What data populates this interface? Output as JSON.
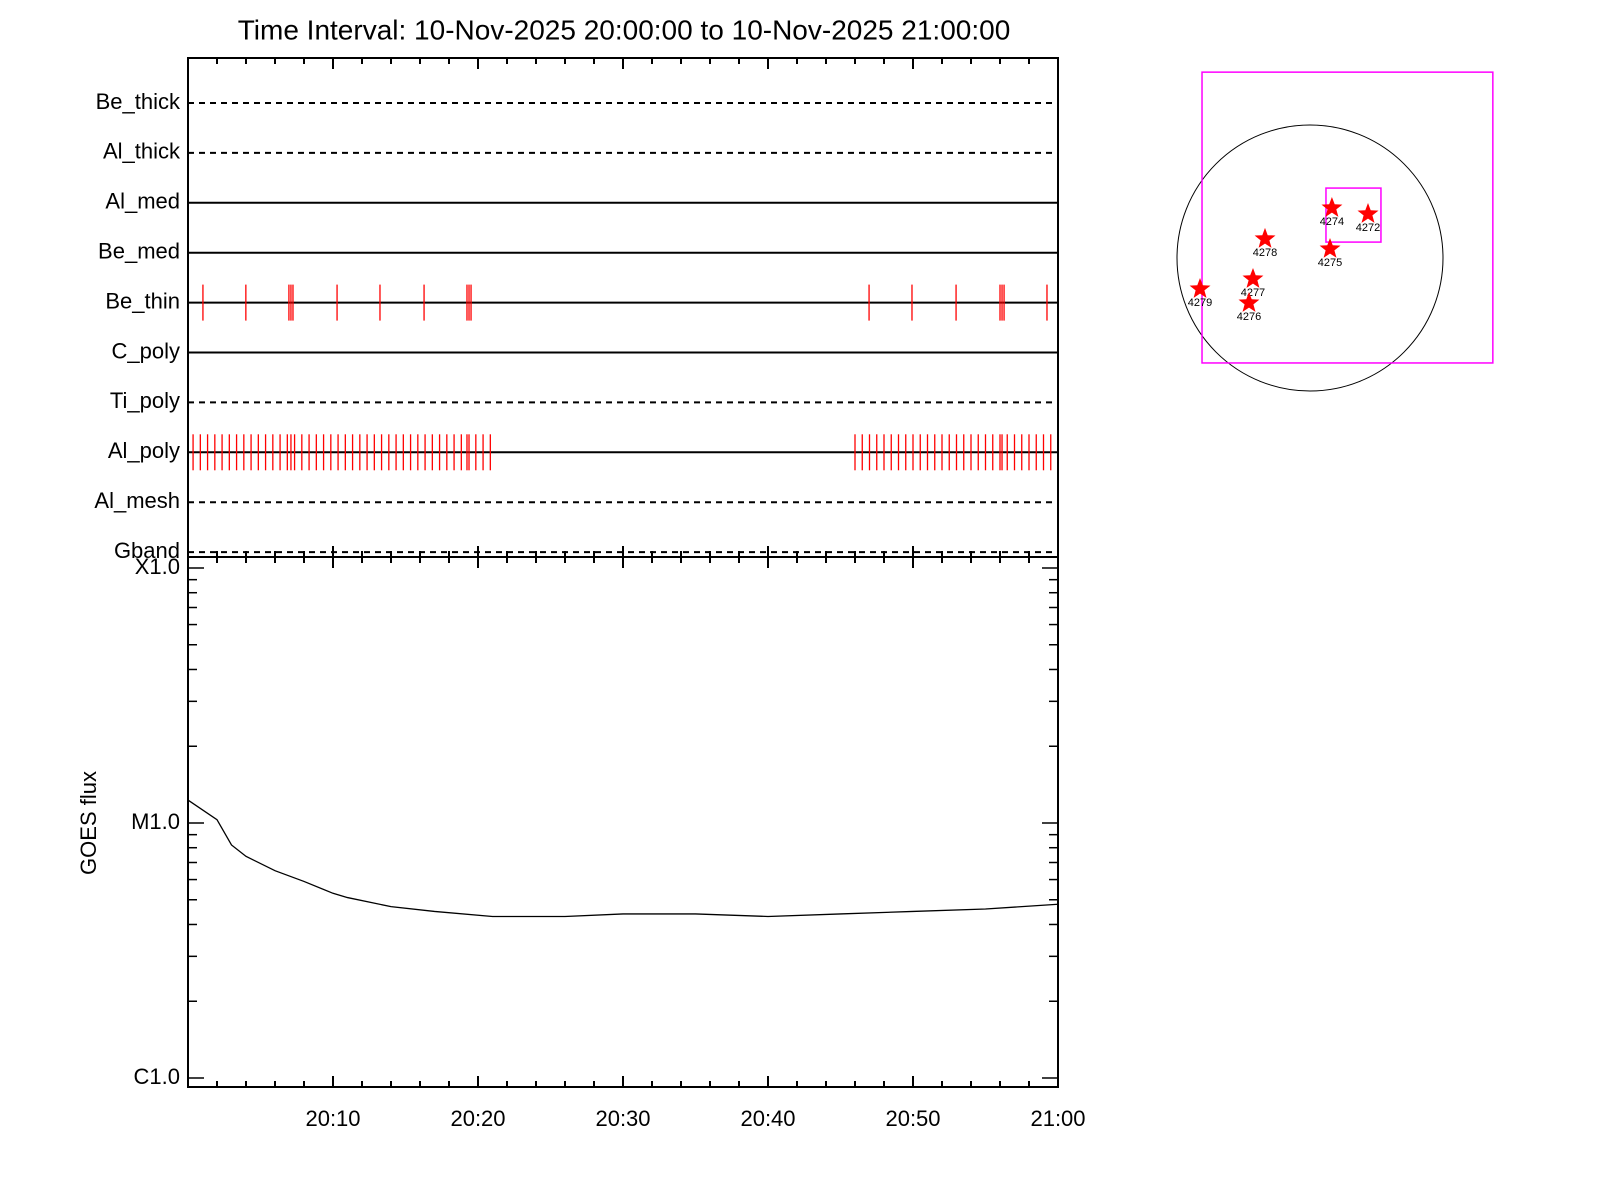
{
  "title": "Time Interval: 10-Nov-2025 20:00:00 to 10-Nov-2025 21:00:00",
  "chart_data": [
    {
      "type": "timeline",
      "categories": [
        "Be_thick",
        "Al_thick",
        "Al_med",
        "Be_med",
        "Be_thin",
        "C_poly",
        "Ti_poly",
        "Al_poly",
        "Al_mesh",
        "Gband"
      ],
      "line_styles": [
        "dashed",
        "dashed",
        "solid",
        "solid",
        "solid",
        "solid",
        "dashed",
        "solid",
        "dashed",
        "dashed"
      ],
      "color": "#ff0000",
      "observations": [
        [],
        [],
        [],
        [],
        [
          1.03,
          3.99,
          6.96,
          7.1,
          7.24,
          10.28,
          13.24,
          16.28,
          19.24,
          19.38,
          19.52,
          46.97,
          49.93,
          52.97,
          56.0,
          56.14,
          56.28,
          59.24
        ],
        [],
        [],
        [
          0.35,
          0.85,
          1.35,
          1.85,
          2.35,
          2.85,
          3.35,
          3.85,
          4.35,
          4.85,
          5.35,
          5.85,
          6.35,
          6.85,
          7.1,
          7.35,
          7.85,
          8.35,
          8.85,
          9.35,
          9.85,
          10.35,
          10.85,
          11.35,
          11.85,
          12.35,
          12.85,
          13.35,
          13.85,
          14.35,
          14.85,
          15.35,
          15.85,
          16.35,
          16.85,
          17.35,
          17.85,
          18.35,
          18.85,
          19.24,
          19.38,
          19.85,
          20.35,
          20.85,
          46.0,
          46.5,
          47.0,
          47.5,
          48.0,
          48.5,
          49.0,
          49.5,
          50.0,
          50.5,
          51.0,
          51.5,
          52.0,
          52.5,
          53.0,
          53.5,
          54.0,
          54.5,
          55.0,
          55.5,
          56.0,
          56.14,
          56.5,
          57.0,
          57.5,
          58.0,
          58.5,
          59.0,
          59.5
        ],
        [],
        []
      ]
    },
    {
      "type": "line",
      "ylabel": "GOES flux",
      "log": true,
      "color": "#000000",
      "x": [
        0,
        2,
        3,
        4,
        6,
        8,
        10,
        11,
        14,
        17,
        21,
        26,
        30,
        35,
        40,
        45,
        50,
        55,
        60
      ],
      "values": [
        1.23e-05,
        1.03e-05,
        8.2e-06,
        7.4e-06,
        6.5e-06,
        5.9e-06,
        5.3e-06,
        5.1e-06,
        4.7e-06,
        4.5e-06,
        4.3e-06,
        4.3e-06,
        4.4e-06,
        4.4e-06,
        4.3e-06,
        4.4e-06,
        4.5e-06,
        4.6e-06,
        4.8e-06
      ],
      "xlim": [
        0,
        60
      ],
      "xticks": [
        {
          "value": 10,
          "label": "20:10"
        },
        {
          "value": 20,
          "label": "20:20"
        },
        {
          "value": 30,
          "label": "20:30"
        },
        {
          "value": 40,
          "label": "20:40"
        },
        {
          "value": 50,
          "label": "20:50"
        },
        {
          "value": 60,
          "label": "21:00"
        }
      ],
      "xminor": [
        2,
        4,
        6,
        8,
        12,
        14,
        16,
        18,
        22,
        24,
        26,
        28,
        32,
        34,
        36,
        38,
        42,
        44,
        46,
        48,
        52,
        54,
        56,
        58
      ],
      "ylim": [
        1e-06,
        0.0001
      ],
      "yticks": [
        {
          "value": 0.0001,
          "label": "X1.0"
        },
        {
          "value": 1e-05,
          "label": "M1.0"
        },
        {
          "value": 1e-06,
          "label": "C1.0"
        }
      ],
      "yminor": [
        2e-06,
        3e-06,
        4e-06,
        5e-06,
        6e-06,
        7e-06,
        8e-06,
        9e-06,
        2e-05,
        3e-05,
        4e-05,
        5e-05,
        6e-05,
        7e-05,
        8e-05,
        9e-05
      ]
    },
    {
      "type": "map",
      "disk_radius": 970,
      "disk_color": "#000000",
      "color": "#ff0000",
      "labels": [
        "4274",
        "4272",
        "4278",
        "4275",
        "4277",
        "4276",
        "4279"
      ],
      "x": [
        160,
        423,
        -328,
        146,
        -416,
        -445,
        -802
      ],
      "y": [
        365,
        321,
        139,
        66,
        -153,
        -328,
        -226
      ],
      "fov": [
        {
          "x": 273,
          "y": 295,
          "width": 2121,
          "height": 2121,
          "color": "#ff00ff"
        },
        {
          "x": 317,
          "y": 313,
          "width": 401,
          "height": 394,
          "color": "#ff00ff"
        }
      ]
    }
  ]
}
